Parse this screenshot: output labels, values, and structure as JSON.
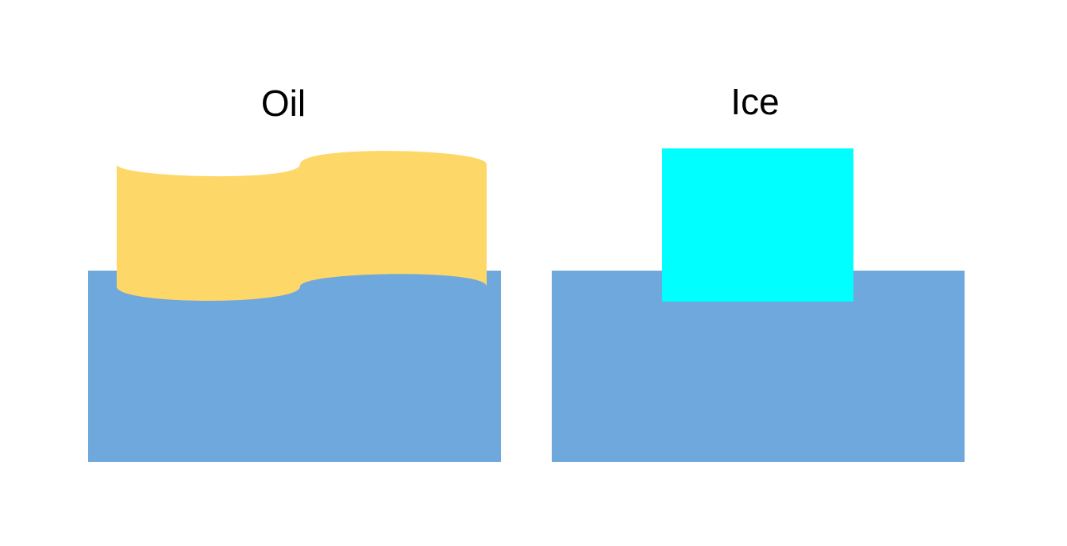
{
  "panels": [
    {
      "title": "Oil",
      "floating_object": "oil-layer",
      "water_color": "#6fa8dc",
      "object_color": "#fdd868"
    },
    {
      "title": "Ice",
      "floating_object": "ice-block",
      "water_color": "#6fa8dc",
      "object_color": "#00ffff"
    }
  ]
}
